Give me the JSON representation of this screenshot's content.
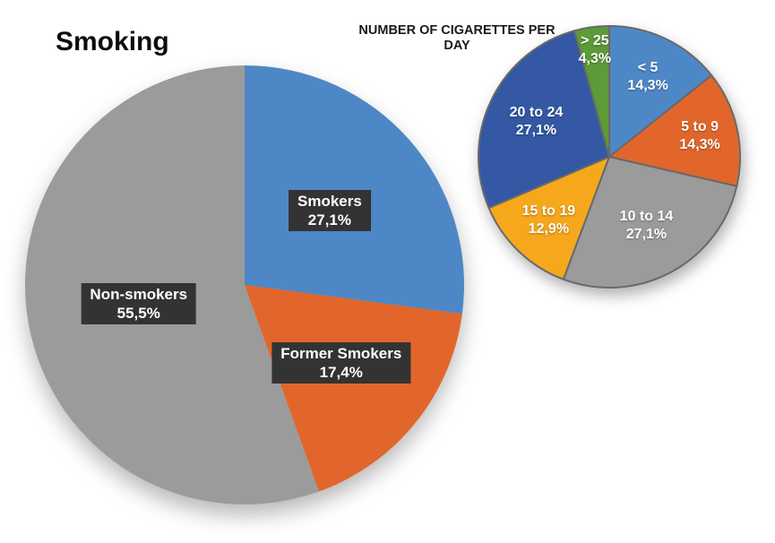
{
  "page": {
    "background_color": "#ffffff",
    "label_box_bg": "#333333",
    "label_text_color": "#ffffff",
    "title_color": "#0d0d0d",
    "pie_outline_color": "#696969"
  },
  "chart_data": [
    {
      "type": "pie",
      "title": "Smoking",
      "start_angle_deg": 0,
      "direction": "clockwise",
      "label_style": "dark-box",
      "outline": false,
      "slices": [
        {
          "label": "Smokers",
          "value_pct": 27.1,
          "display": "27,1%",
          "color": "#4E87C5"
        },
        {
          "label": "Former Smokers",
          "value_pct": 17.4,
          "display": "17,4%",
          "color": "#E2662B"
        },
        {
          "label": "Non-smokers",
          "value_pct": 55.5,
          "display": "55,5%",
          "color": "#9B9B9B"
        }
      ]
    },
    {
      "type": "pie",
      "title": "NUMBER OF CIGARETTES PER DAY",
      "title_lines": [
        "NUMBER OF CIGARETTES",
        "PER DAY"
      ],
      "start_angle_deg": 0,
      "direction": "clockwise",
      "label_style": "plain-white",
      "outline": true,
      "outline_color": "#696969",
      "slices": [
        {
          "label": "< 5",
          "value_pct": 14.3,
          "display": "14,3%",
          "color": "#4E87C5"
        },
        {
          "label": "5 to 9",
          "value_pct": 14.3,
          "display": "14,3%",
          "color": "#E2662B"
        },
        {
          "label": "10 to 14",
          "value_pct": 27.1,
          "display": "27,1%",
          "color": "#9B9B9B"
        },
        {
          "label": "15 to 19",
          "value_pct": 12.9,
          "display": "12,9%",
          "color": "#F6A81C"
        },
        {
          "label": "20 to 24",
          "value_pct": 27.1,
          "display": "27,1%",
          "color": "#3458A4"
        },
        {
          "label": "> 25",
          "value_pct": 4.3,
          "display": "4,3%",
          "color": "#5C9B37"
        }
      ]
    }
  ]
}
